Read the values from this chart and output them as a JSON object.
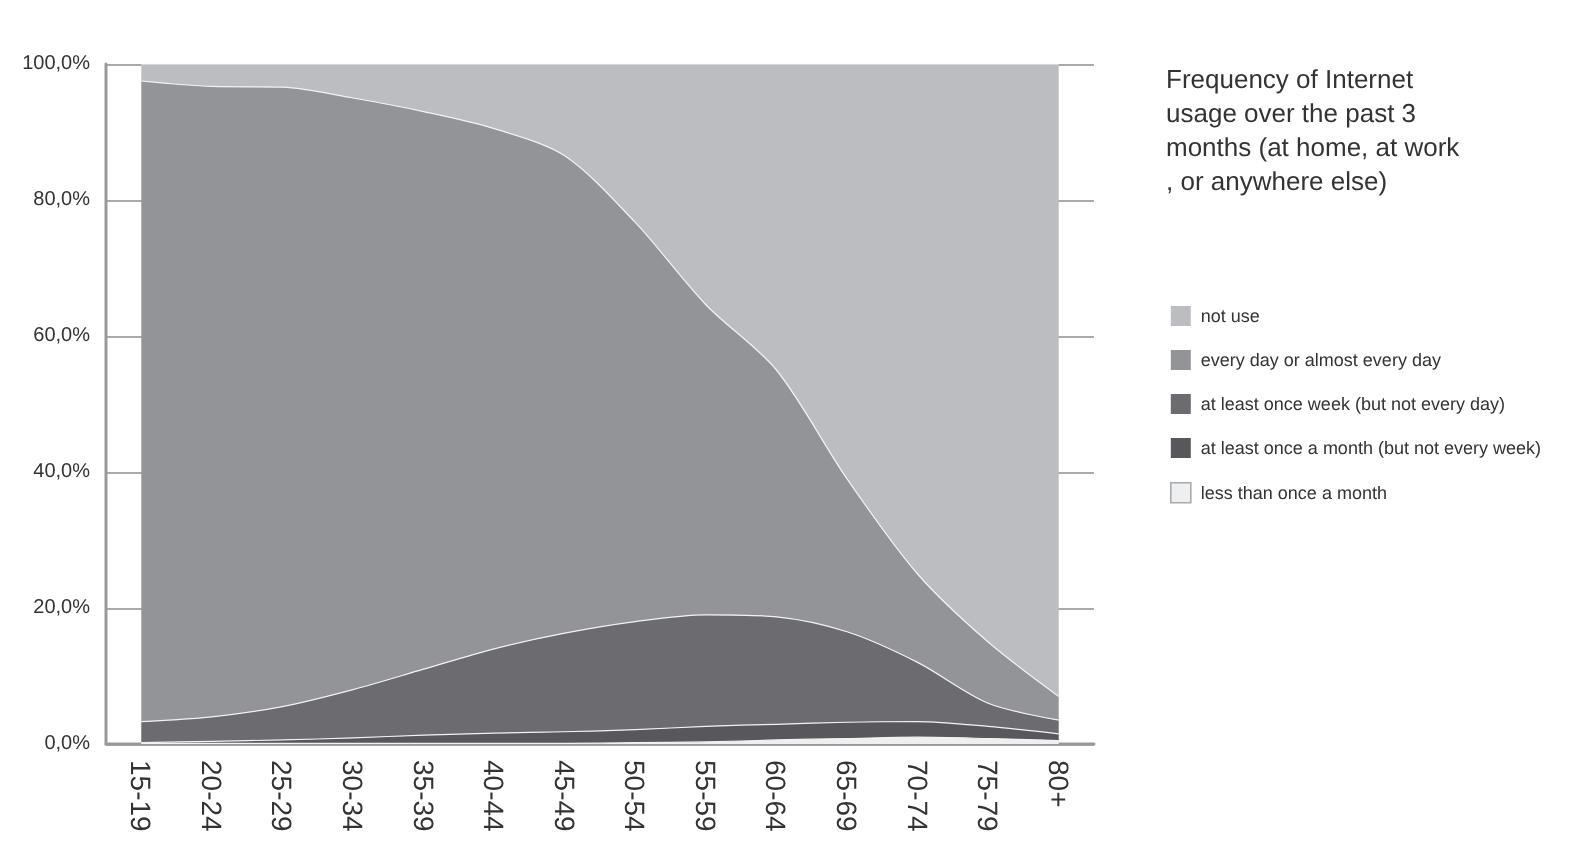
{
  "chart_data": {
    "type": "area",
    "stacked": true,
    "legend_title": "Frequency of Internet usage over the past 3 months (at home, at work, or anywhere else)",
    "categories": [
      "15-19",
      "20-24",
      "25-29",
      "30-34",
      "35-39",
      "40-44",
      "45-49",
      "50-54",
      "55-59",
      "60-64",
      "65-69",
      "70-74",
      "75-79",
      "80+"
    ],
    "series": [
      {
        "name": "less than once a month",
        "color": "#eeeff1",
        "values": [
          0.1,
          0.1,
          0.1,
          0.1,
          0.1,
          0.1,
          0.1,
          0.2,
          0.3,
          0.6,
          0.8,
          1.0,
          0.8,
          0.5
        ]
      },
      {
        "name": "at least once a month (but not every week)",
        "color": "#58585c",
        "values": [
          0.1,
          0.3,
          0.5,
          0.8,
          1.2,
          1.5,
          1.7,
          1.9,
          2.3,
          2.3,
          2.4,
          2.3,
          1.8,
          1.0
        ]
      },
      {
        "name": "at least once week (but not every day)",
        "color": "#6b6b70",
        "values": [
          3.1,
          3.6,
          4.9,
          7.1,
          9.7,
          12.4,
          14.5,
          15.9,
          16.4,
          15.8,
          13.3,
          8.7,
          3.4,
          2.0
        ]
      },
      {
        "name": "every day or almost every day",
        "color": "#939498",
        "values": [
          94.2,
          92.7,
          91.1,
          87.0,
          82.0,
          76.5,
          70.2,
          58.7,
          45.6,
          36.3,
          22.5,
          13.0,
          9.0,
          3.5
        ]
      },
      {
        "name": "not use",
        "color": "#bcbdc1",
        "values": [
          2.5,
          3.3,
          3.4,
          5.0,
          7.0,
          9.5,
          13.5,
          23.3,
          35.4,
          45.0,
          61.0,
          75.0,
          85.0,
          93.0
        ]
      }
    ],
    "ylim": [
      0,
      100
    ],
    "yticks": [
      {
        "value": 0,
        "label": "0,0%"
      },
      {
        "value": 20,
        "label": "20,0%"
      },
      {
        "value": 40,
        "label": "40,0%"
      },
      {
        "value": 60,
        "label": "60,0%"
      },
      {
        "value": 80,
        "label": "80,0%"
      },
      {
        "value": 100,
        "label": "100,0%"
      }
    ],
    "grid": "y",
    "legend": "right",
    "marker": "none"
  }
}
